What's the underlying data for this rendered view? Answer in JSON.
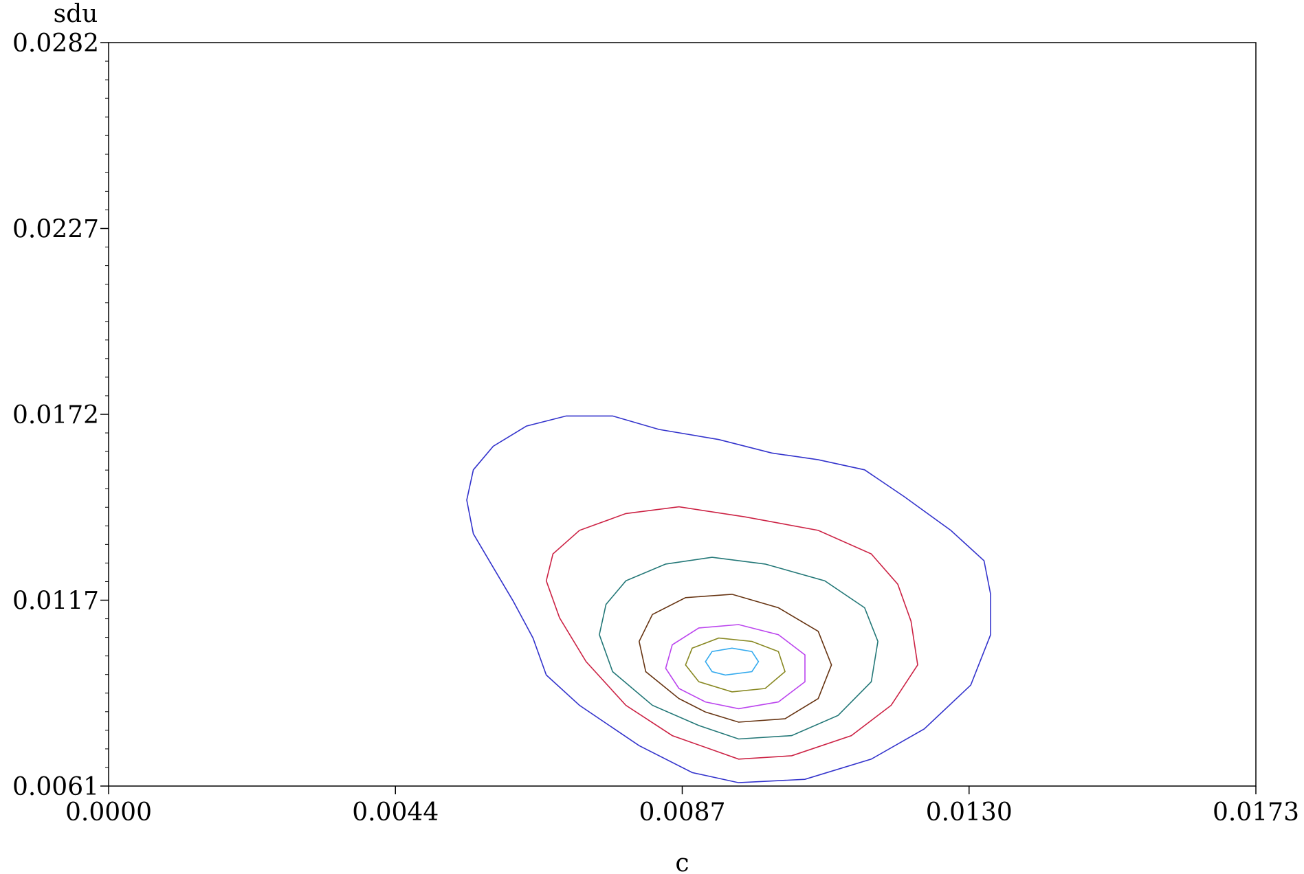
{
  "chart_data": {
    "type": "contour",
    "xlabel": "c",
    "ylabel": "sdu",
    "xlim": [
      0.0,
      0.0173
    ],
    "ylim": [
      0.0061,
      0.0282
    ],
    "x_ticks": [
      "0.0000",
      "0.0044",
      "0.0087",
      "0.0130",
      "0.0173"
    ],
    "y_ticks": [
      "0.0061",
      "0.0117",
      "0.0172",
      "0.0227",
      "0.0282"
    ],
    "grid": false,
    "contours": [
      {
        "level": 1,
        "color": "#3333cc",
        "points": [
          [
            0.0095,
            0.0062
          ],
          [
            0.0105,
            0.0063
          ],
          [
            0.0115,
            0.0069
          ],
          [
            0.0123,
            0.0078
          ],
          [
            0.013,
            0.0091
          ],
          [
            0.0133,
            0.0106
          ],
          [
            0.0133,
            0.0118
          ],
          [
            0.0132,
            0.0128
          ],
          [
            0.0127,
            0.0137
          ],
          [
            0.012,
            0.0147
          ],
          [
            0.0114,
            0.0155
          ],
          [
            0.0107,
            0.0158
          ],
          [
            0.01,
            0.016
          ],
          [
            0.0092,
            0.0164
          ],
          [
            0.0083,
            0.0167
          ],
          [
            0.0076,
            0.0171
          ],
          [
            0.0069,
            0.0171
          ],
          [
            0.0063,
            0.0168
          ],
          [
            0.0058,
            0.0162
          ],
          [
            0.0055,
            0.0155
          ],
          [
            0.0054,
            0.0146
          ],
          [
            0.0055,
            0.0136
          ],
          [
            0.0058,
            0.0126
          ],
          [
            0.0061,
            0.0116
          ],
          [
            0.0064,
            0.0105
          ],
          [
            0.0066,
            0.0094
          ],
          [
            0.0071,
            0.0085
          ],
          [
            0.008,
            0.0073
          ],
          [
            0.0088,
            0.0065
          ]
        ]
      },
      {
        "level": 2,
        "color": "#cc2244",
        "points": [
          [
            0.0095,
            0.0069
          ],
          [
            0.0103,
            0.007
          ],
          [
            0.0112,
            0.0076
          ],
          [
            0.0118,
            0.0085
          ],
          [
            0.0122,
            0.0097
          ],
          [
            0.0121,
            0.011
          ],
          [
            0.0119,
            0.0121
          ],
          [
            0.0115,
            0.013
          ],
          [
            0.0107,
            0.0137
          ],
          [
            0.0096,
            0.0141
          ],
          [
            0.0086,
            0.0144
          ],
          [
            0.0078,
            0.0142
          ],
          [
            0.0071,
            0.0137
          ],
          [
            0.0067,
            0.013
          ],
          [
            0.0066,
            0.0122
          ],
          [
            0.0068,
            0.0111
          ],
          [
            0.0072,
            0.0098
          ],
          [
            0.0078,
            0.0085
          ],
          [
            0.0085,
            0.0076
          ]
        ]
      },
      {
        "level": 3,
        "color": "#227777",
        "points": [
          [
            0.0095,
            0.0075
          ],
          [
            0.0103,
            0.0076
          ],
          [
            0.011,
            0.0082
          ],
          [
            0.0115,
            0.0092
          ],
          [
            0.0116,
            0.0104
          ],
          [
            0.0114,
            0.0114
          ],
          [
            0.0108,
            0.0122
          ],
          [
            0.0099,
            0.0127
          ],
          [
            0.0091,
            0.0129
          ],
          [
            0.0084,
            0.0127
          ],
          [
            0.0078,
            0.0122
          ],
          [
            0.0075,
            0.0115
          ],
          [
            0.0074,
            0.0106
          ],
          [
            0.0076,
            0.0095
          ],
          [
            0.0082,
            0.0085
          ],
          [
            0.0089,
            0.0079
          ]
        ]
      },
      {
        "level": 4,
        "color": "#663311",
        "points": [
          [
            0.0095,
            0.008
          ],
          [
            0.0102,
            0.0081
          ],
          [
            0.0107,
            0.0087
          ],
          [
            0.0109,
            0.0097
          ],
          [
            0.0107,
            0.0107
          ],
          [
            0.0101,
            0.0114
          ],
          [
            0.0094,
            0.0118
          ],
          [
            0.0087,
            0.0117
          ],
          [
            0.0082,
            0.0112
          ],
          [
            0.008,
            0.0104
          ],
          [
            0.0081,
            0.0095
          ],
          [
            0.0086,
            0.0087
          ],
          [
            0.009,
            0.0083
          ]
        ]
      },
      {
        "level": 5,
        "color": "#bb44ee",
        "points": [
          [
            0.0095,
            0.0084
          ],
          [
            0.0101,
            0.0086
          ],
          [
            0.0105,
            0.0092
          ],
          [
            0.0105,
            0.01
          ],
          [
            0.0101,
            0.0106
          ],
          [
            0.0095,
            0.0109
          ],
          [
            0.0089,
            0.0108
          ],
          [
            0.0085,
            0.0103
          ],
          [
            0.0084,
            0.0096
          ],
          [
            0.0086,
            0.009
          ],
          [
            0.009,
            0.0086
          ]
        ]
      },
      {
        "level": 6,
        "color": "#888822",
        "points": [
          [
            0.0094,
            0.0089
          ],
          [
            0.0099,
            0.009
          ],
          [
            0.0102,
            0.0095
          ],
          [
            0.0101,
            0.0101
          ],
          [
            0.0097,
            0.0104
          ],
          [
            0.0092,
            0.0105
          ],
          [
            0.0088,
            0.0102
          ],
          [
            0.0087,
            0.0097
          ],
          [
            0.0089,
            0.0092
          ]
        ]
      },
      {
        "level": 7,
        "color": "#33aaee",
        "points": [
          [
            0.0093,
            0.0094
          ],
          [
            0.0097,
            0.0095
          ],
          [
            0.0098,
            0.0098
          ],
          [
            0.0097,
            0.0101
          ],
          [
            0.0094,
            0.0102
          ],
          [
            0.0091,
            0.0101
          ],
          [
            0.009,
            0.0098
          ],
          [
            0.0091,
            0.0095
          ]
        ]
      }
    ]
  }
}
